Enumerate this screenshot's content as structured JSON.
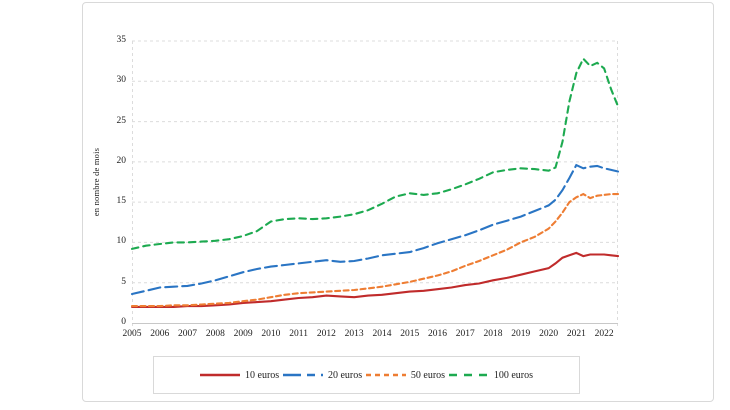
{
  "page": {
    "background": "#ffffff",
    "card_border_color": "#d9d9d9",
    "grid_color": "#dcdcdc",
    "axis_line_color": "#c8c8c8"
  },
  "chart_data": {
    "type": "line",
    "title": "",
    "xlabel": "",
    "ylabel": "en nombre de mois",
    "ylim": [
      0,
      35
    ],
    "xlim": [
      2005,
      2022.5
    ],
    "yticks": [
      0,
      5,
      10,
      15,
      20,
      25,
      30,
      35
    ],
    "xticks": [
      2005,
      2006,
      2007,
      2008,
      2009,
      2010,
      2011,
      2012,
      2013,
      2014,
      2015,
      2016,
      2017,
      2018,
      2019,
      2020,
      2021,
      2022
    ],
    "grid": "horizontal-dashed",
    "legend_position": "bottom",
    "x": [
      2005,
      2005.5,
      2006,
      2006.5,
      2007,
      2007.5,
      2008,
      2008.5,
      2009,
      2009.5,
      2010,
      2010.5,
      2011,
      2011.5,
      2012,
      2012.5,
      2013,
      2013.5,
      2014,
      2014.5,
      2015,
      2015.5,
      2016,
      2016.5,
      2017,
      2017.5,
      2018,
      2018.5,
      2019,
      2019.5,
      2020,
      2020.25,
      2020.5,
      2020.75,
      2021,
      2021.25,
      2021.5,
      2021.75,
      2022,
      2022.25,
      2022.5
    ],
    "series": [
      {
        "name": "10 euros",
        "color": "#c02b2b",
        "dash": "",
        "legend_dash": "",
        "values": [
          2.0,
          2.0,
          2.0,
          2.0,
          2.1,
          2.1,
          2.2,
          2.3,
          2.5,
          2.6,
          2.7,
          2.9,
          3.1,
          3.2,
          3.4,
          3.3,
          3.2,
          3.4,
          3.5,
          3.7,
          3.9,
          4.0,
          4.2,
          4.4,
          4.7,
          4.9,
          5.3,
          5.6,
          6.0,
          6.4,
          6.8,
          7.4,
          8.1,
          8.4,
          8.7,
          8.3,
          8.5,
          8.5,
          8.5,
          8.4,
          8.3
        ]
      },
      {
        "name": "20 euros",
        "color": "#2a75c4",
        "dash": "12 5",
        "legend_dash": "18 6 8 6",
        "values": [
          3.6,
          4.0,
          4.4,
          4.5,
          4.6,
          4.9,
          5.3,
          5.8,
          6.3,
          6.7,
          7.0,
          7.2,
          7.4,
          7.6,
          7.8,
          7.6,
          7.7,
          8.0,
          8.4,
          8.6,
          8.8,
          9.3,
          9.9,
          10.4,
          10.9,
          11.5,
          12.2,
          12.7,
          13.2,
          13.9,
          14.6,
          15.3,
          16.5,
          18.0,
          19.6,
          19.2,
          19.4,
          19.5,
          19.2,
          19.0,
          18.8
        ]
      },
      {
        "name": "50 euros",
        "color": "#ee7d33",
        "dash": "5 3.5",
        "legend_dash": "5 4",
        "values": [
          2.1,
          2.1,
          2.1,
          2.2,
          2.2,
          2.3,
          2.4,
          2.5,
          2.7,
          2.9,
          3.2,
          3.5,
          3.7,
          3.8,
          3.9,
          4.0,
          4.1,
          4.3,
          4.5,
          4.8,
          5.1,
          5.5,
          5.9,
          6.4,
          7.1,
          7.7,
          8.4,
          9.1,
          10.0,
          10.7,
          11.7,
          12.6,
          13.7,
          15.0,
          15.6,
          16.0,
          15.5,
          15.8,
          15.9,
          16.0,
          16.0
        ]
      },
      {
        "name": "100 euros",
        "color": "#1daa50",
        "dash": "6.5 5",
        "legend_dash": "8 7",
        "values": [
          9.2,
          9.6,
          9.8,
          10.0,
          10.0,
          10.1,
          10.2,
          10.4,
          10.8,
          11.4,
          12.6,
          12.9,
          13.0,
          12.9,
          13.0,
          13.2,
          13.5,
          14.0,
          14.8,
          15.7,
          16.1,
          15.9,
          16.1,
          16.6,
          17.2,
          17.9,
          18.7,
          19.0,
          19.2,
          19.1,
          18.9,
          19.3,
          22.5,
          27.5,
          31.0,
          32.8,
          31.9,
          32.3,
          31.6,
          29.0,
          26.9
        ]
      }
    ]
  }
}
